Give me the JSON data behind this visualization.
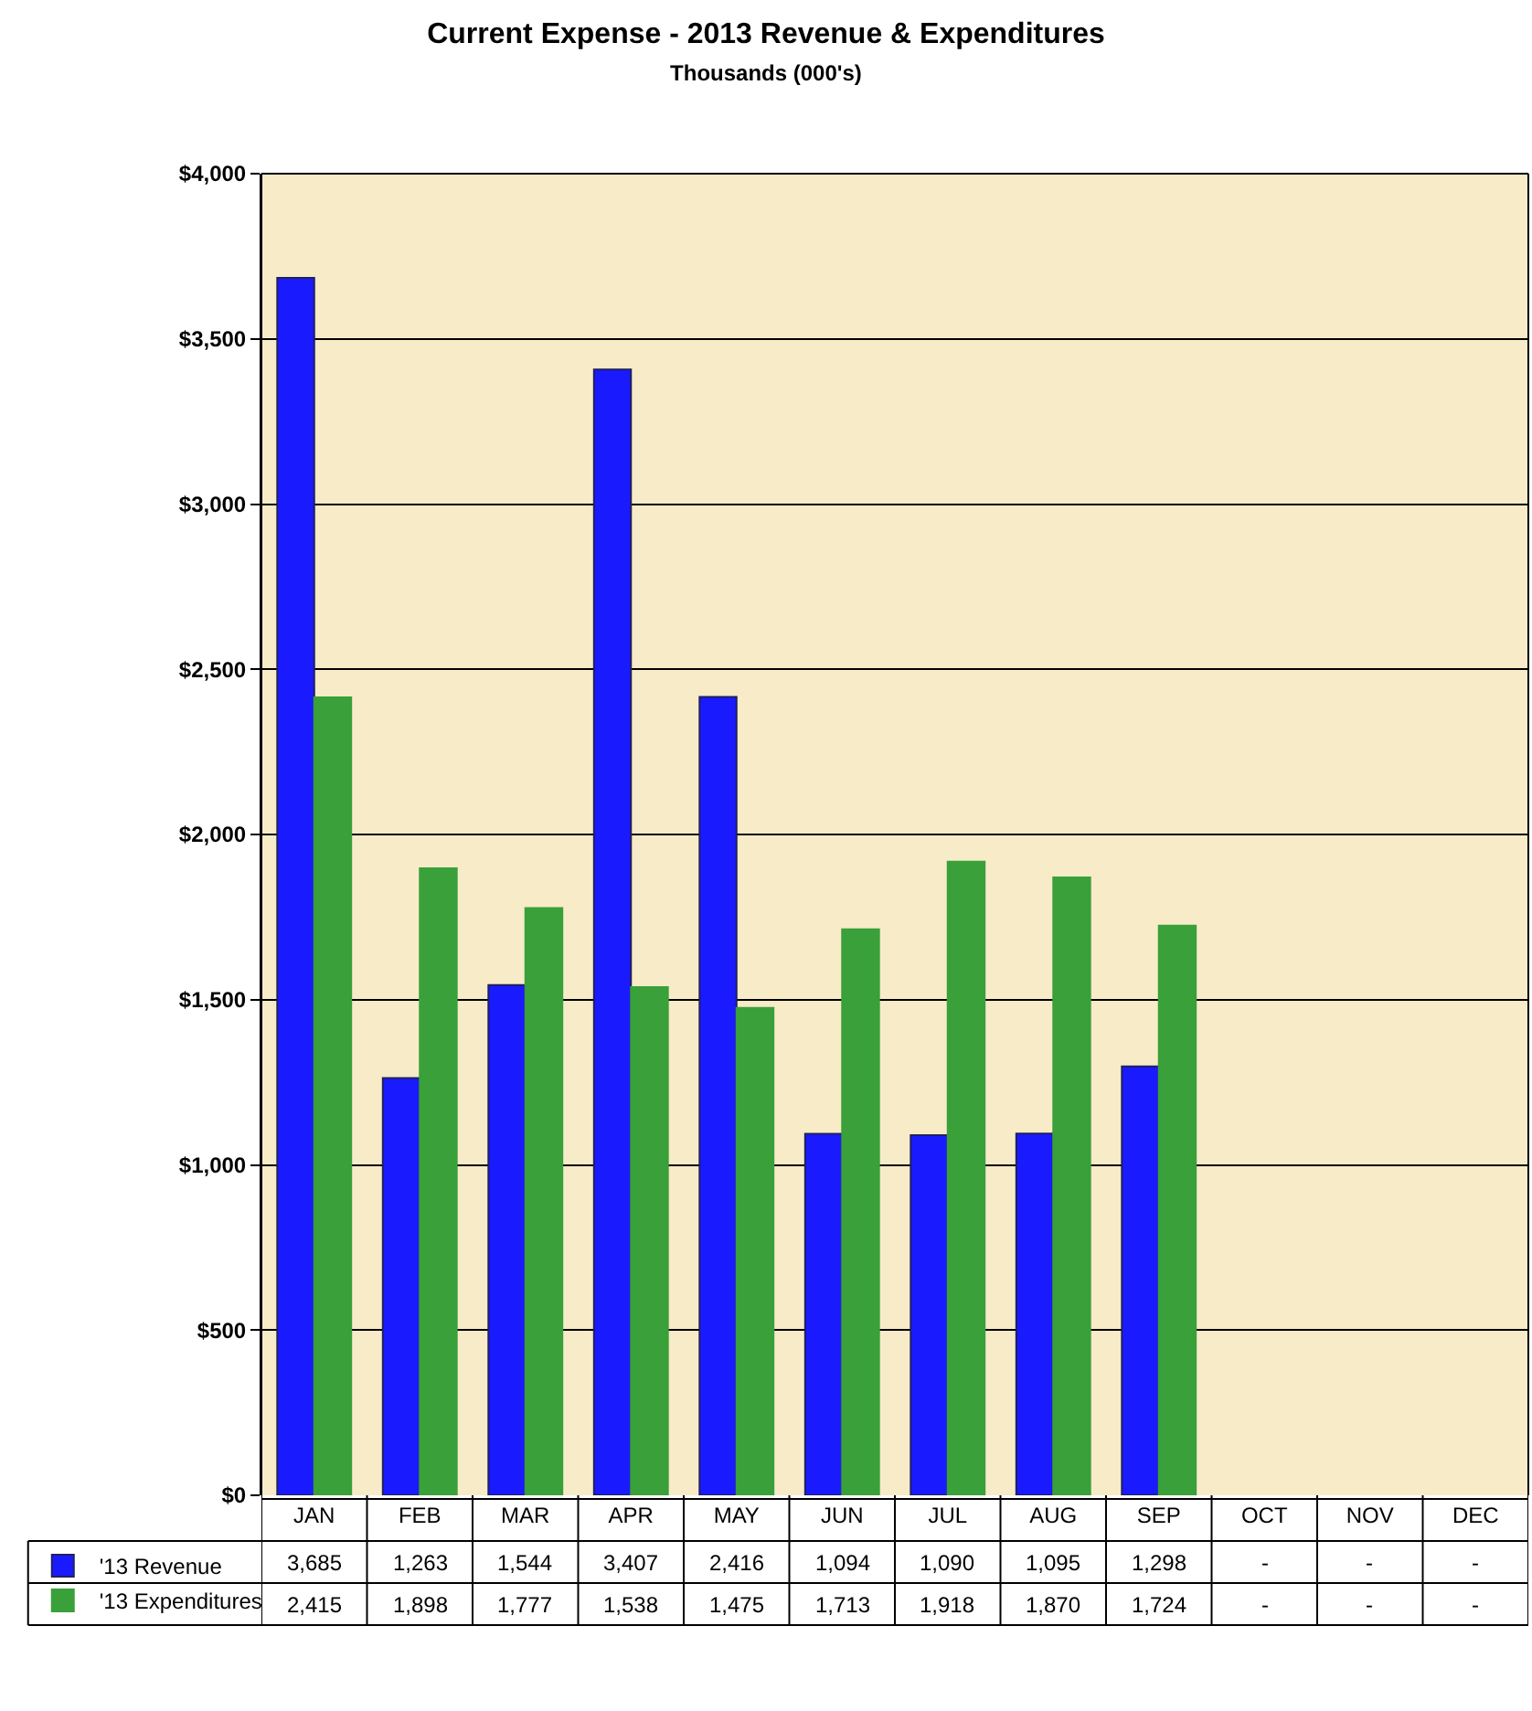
{
  "chart_data": {
    "type": "bar",
    "title": "Current Expense - 2013 Revenue & Expenditures",
    "subtitle": "Thousands (000's)",
    "categories": [
      "JAN",
      "FEB",
      "MAR",
      "APR",
      "MAY",
      "JUN",
      "JUL",
      "AUG",
      "SEP",
      "OCT",
      "NOV",
      "DEC"
    ],
    "series": [
      {
        "name": "'13 Revenue",
        "color": "#1a1aff",
        "values": [
          3685,
          1263,
          1544,
          3407,
          2416,
          1094,
          1090,
          1095,
          1298,
          null,
          null,
          null
        ],
        "value_labels": [
          "3,685",
          "1,263",
          "1,544",
          "3,407",
          "2,416",
          "1,094",
          "1,090",
          "1,095",
          "1,298",
          "-",
          "-",
          "-"
        ]
      },
      {
        "name": "'13 Expenditures",
        "color": "#3aa03a",
        "values": [
          2415,
          1898,
          1777,
          1538,
          1475,
          1713,
          1918,
          1870,
          1724,
          null,
          null,
          null
        ],
        "value_labels": [
          "2,415",
          "1,898",
          "1,777",
          "1,538",
          "1,475",
          "1,713",
          "1,918",
          "1,870",
          "1,724",
          "-",
          "-",
          "-"
        ]
      }
    ],
    "ylim": [
      0,
      4000
    ],
    "yticks": [
      {
        "value": 0,
        "label": "$0"
      },
      {
        "value": 500,
        "label": "$500"
      },
      {
        "value": 1000,
        "label": "$1,000"
      },
      {
        "value": 1500,
        "label": "$1,500"
      },
      {
        "value": 2000,
        "label": "$2,000"
      },
      {
        "value": 2500,
        "label": "$2,500"
      },
      {
        "value": 3000,
        "label": "$3,000"
      },
      {
        "value": 3500,
        "label": "$3,500"
      },
      {
        "value": 4000,
        "label": "$4,000"
      }
    ],
    "grid": "y",
    "legend": "bottom left"
  }
}
